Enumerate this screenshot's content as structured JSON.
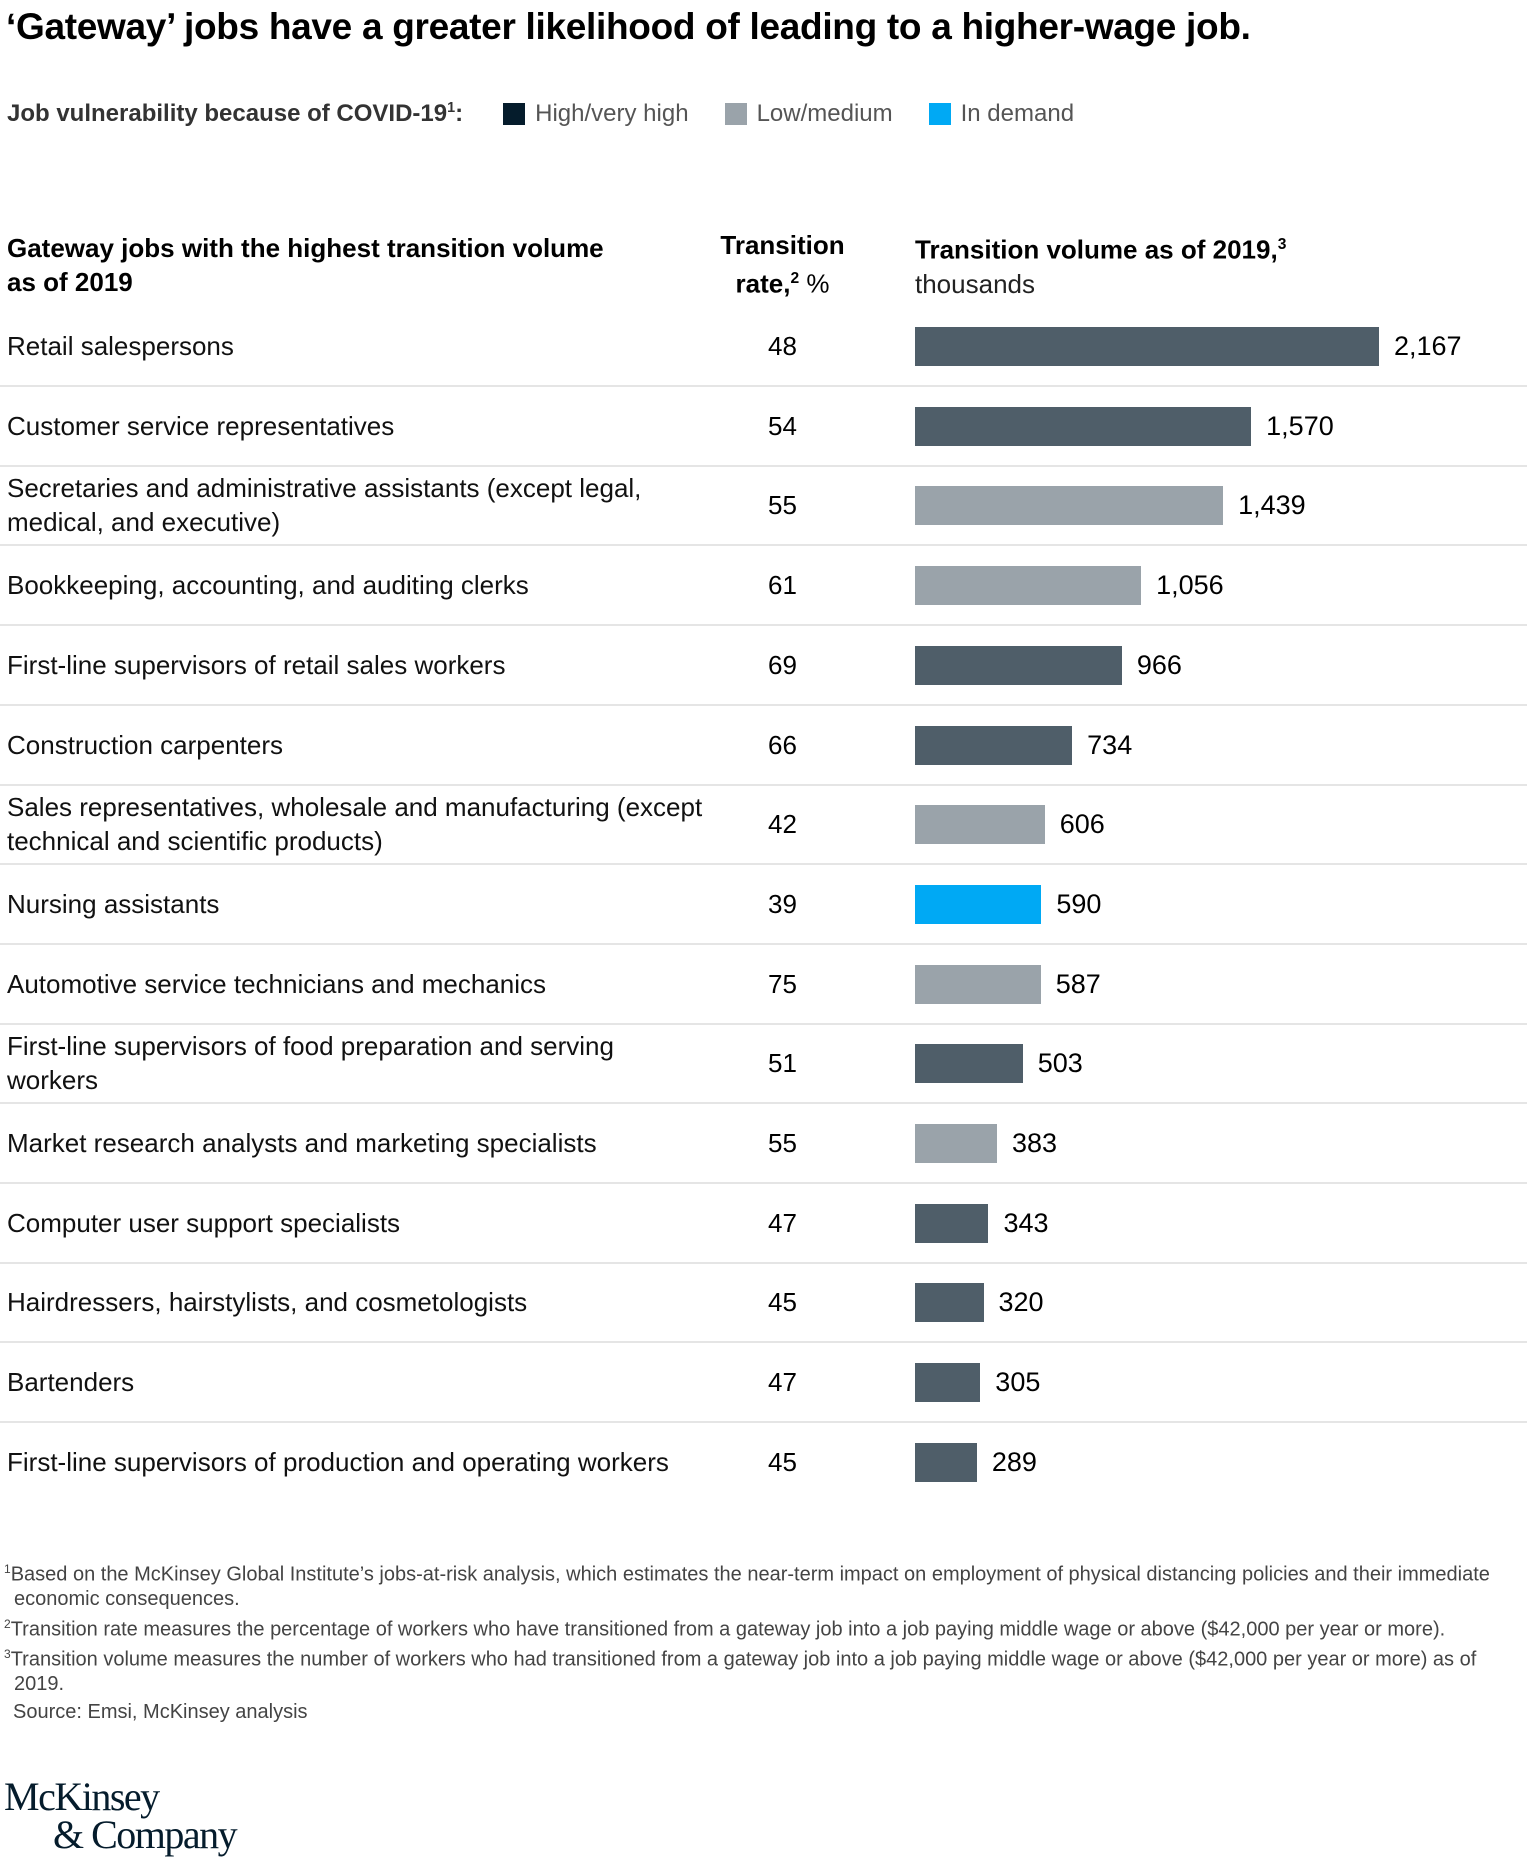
{
  "title": "‘Gateway’ jobs have a greater likelihood of leading to a higher-wage job.",
  "legend": {
    "label": "Job vulnerability because of COVID-19",
    "label_sup": "1",
    "label_suffix": ":",
    "items": [
      {
        "key": "high",
        "label": "High/very high",
        "color": "#051c2c"
      },
      {
        "key": "low",
        "label": "Low/medium",
        "color": "#9aa3aa"
      },
      {
        "key": "demand",
        "label": "In demand",
        "color": "#00a9f4"
      }
    ]
  },
  "headers": {
    "jobs": "Gateway jobs with the highest transition volume as of 2019",
    "rate_line1": "Transition",
    "rate_line2": "rate,",
    "rate_sup": "2",
    "rate_unit": " %",
    "volume": "Transition volume as of 2019,",
    "volume_sup": "3",
    "volume_unit": "thousands"
  },
  "colors": {
    "high": "#4f5e69",
    "low": "#9aa3aa",
    "demand": "#00a9f4"
  },
  "chart_data": {
    "type": "bar",
    "orientation": "horizontal",
    "unit": "thousands",
    "categories": [
      "Retail salespersons",
      "Customer service representatives",
      "Secretaries and administrative assistants (except legal, medical, and executive)",
      "Bookkeeping, accounting, and auditing clerks",
      "First-line supervisors of retail sales workers",
      "Construction carpenters",
      "Sales representatives, wholesale and manufacturing (except technical and scientific products)",
      "Nursing assistants",
      "Automotive service technicians and mechanics",
      "First-line supervisors of food preparation and serving workers",
      "Market research analysts and marketing specialists",
      "Computer user support specialists",
      "Hairdressers, hairstylists, and cosmetologists",
      "Bartenders",
      "First-line supervisors of production and operating workers"
    ],
    "transition_rate": [
      48,
      54,
      55,
      61,
      69,
      66,
      42,
      39,
      75,
      51,
      55,
      47,
      45,
      47,
      45
    ],
    "values": [
      2167,
      1570,
      1439,
      1056,
      966,
      734,
      606,
      590,
      587,
      503,
      383,
      343,
      320,
      305,
      289
    ],
    "value_labels": [
      "2,167",
      "1,570",
      "1,439",
      "1,056",
      "966",
      "734",
      "606",
      "590",
      "587",
      "503",
      "383",
      "343",
      "320",
      "305",
      "289"
    ],
    "vulnerability": [
      "high",
      "high",
      "low",
      "low",
      "high",
      "high",
      "low",
      "demand",
      "low",
      "high",
      "low",
      "high",
      "high",
      "high",
      "high"
    ],
    "xlim": [
      0,
      2167
    ]
  },
  "footnotes": [
    {
      "num": "1",
      "text": "Based on the McKinsey Global Institute’s jobs-at-risk analysis, which estimates the near-term impact on employment of physical distancing policies and their immediate economic consequences."
    },
    {
      "num": "2",
      "text": "Transition rate measures the percentage of workers who have transitioned from a gateway job into a job paying middle wage or above ($42,000 per year or more)."
    },
    {
      "num": "3",
      "text": "Transition volume measures the number of workers who had transitioned from a gateway job into a job paying middle wage or above ($42,000 per year or more) as of 2019."
    }
  ],
  "source": "Source: Emsi, McKinsey analysis",
  "logo": {
    "line1": "McKinsey",
    "line2": "& Company"
  }
}
